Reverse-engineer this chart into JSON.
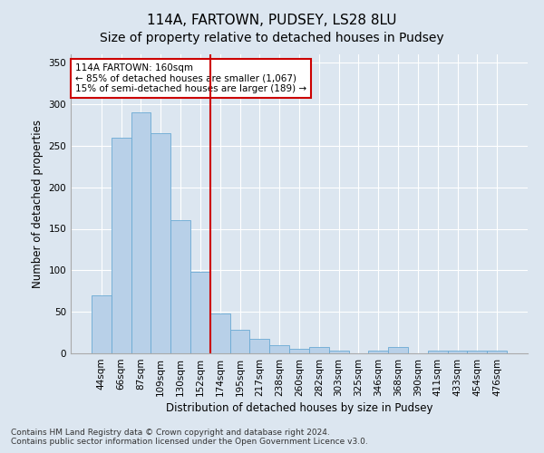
{
  "title": "114A, FARTOWN, PUDSEY, LS28 8LU",
  "subtitle": "Size of property relative to detached houses in Pudsey",
  "xlabel": "Distribution of detached houses by size in Pudsey",
  "ylabel": "Number of detached properties",
  "categories": [
    "44sqm",
    "66sqm",
    "87sqm",
    "109sqm",
    "130sqm",
    "152sqm",
    "174sqm",
    "195sqm",
    "217sqm",
    "238sqm",
    "260sqm",
    "282sqm",
    "303sqm",
    "325sqm",
    "346sqm",
    "368sqm",
    "390sqm",
    "411sqm",
    "433sqm",
    "454sqm",
    "476sqm"
  ],
  "values": [
    70,
    260,
    290,
    265,
    160,
    98,
    48,
    28,
    18,
    10,
    6,
    8,
    3,
    0,
    3,
    8,
    0,
    3,
    3,
    3,
    3
  ],
  "bar_color": "#b8d0e8",
  "bar_edge_color": "#6aaad4",
  "red_line_index": 5.5,
  "annotation_text": "114A FARTOWN: 160sqm\n← 85% of detached houses are smaller (1,067)\n15% of semi-detached houses are larger (189) →",
  "annotation_box_color": "#ffffff",
  "annotation_box_edge": "#cc0000",
  "ylim": [
    0,
    360
  ],
  "yticks": [
    0,
    50,
    100,
    150,
    200,
    250,
    300,
    350
  ],
  "footer_text": "Contains HM Land Registry data © Crown copyright and database right 2024.\nContains public sector information licensed under the Open Government Licence v3.0.",
  "background_color": "#dce6f0",
  "plot_background": "#dce6f0",
  "title_fontsize": 11,
  "subtitle_fontsize": 10,
  "axis_label_fontsize": 8.5,
  "tick_fontsize": 7.5,
  "footer_fontsize": 6.5,
  "annotation_fontsize": 7.5
}
